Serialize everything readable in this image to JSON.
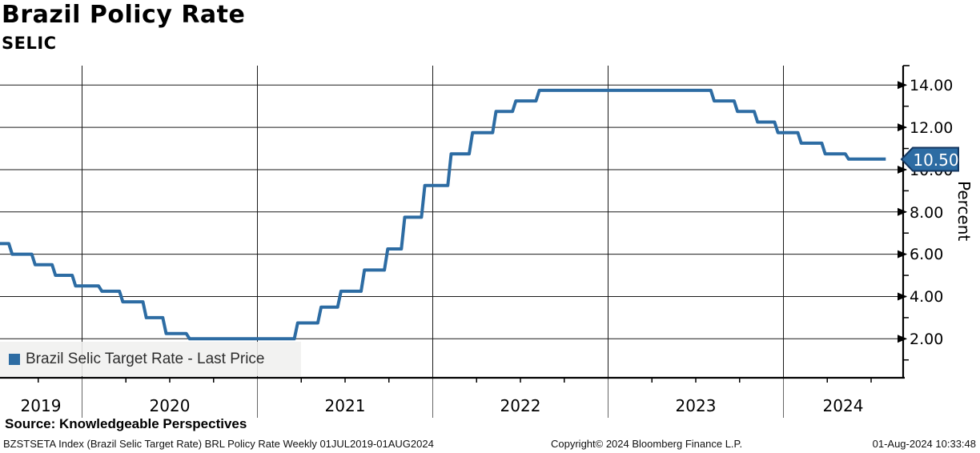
{
  "header": {
    "title": "Brazil Policy Rate",
    "subtitle": "SELIC"
  },
  "y_axis": {
    "unit_label": "Percent",
    "ticks": [
      "14.00",
      "12.00",
      "10.00",
      "8.00",
      "6.00",
      "4.00",
      "2.00"
    ]
  },
  "x_axis": {
    "years": [
      "2019",
      "2020",
      "2021",
      "2022",
      "2023",
      "2024"
    ]
  },
  "legend": {
    "label": "Brazil Selic Target Rate - Last Price"
  },
  "badge": {
    "value": "10.50"
  },
  "colors": {
    "line": "#2d6ca3",
    "badge_fill": "#2d6ca3",
    "badge_border": "#14365f",
    "grid": "#1a1a1a",
    "axis": "#000000",
    "separator": "#666666",
    "legend_bg": "#f0f0ef"
  },
  "footer": {
    "source": "Source: Knowledgeable Perspectives",
    "meta_left": "BZSTSETA Index (Brazil Selic Target Rate) BRL Policy Rate  Weekly 01JUL2019-01AUG2024",
    "meta_center": "Copyright© 2024 Bloomberg Finance L.P.",
    "meta_right": "01-Aug-2024 10:33:48"
  },
  "chart_data": {
    "type": "line",
    "style": "step",
    "title": "Brazil Policy Rate",
    "subtitle": "SELIC",
    "ylabel": "Percent",
    "ylim": [
      1,
      15
    ],
    "y_major_ticks": [
      2,
      4,
      6,
      8,
      10,
      12,
      14
    ],
    "x_range": [
      "01JUL2019",
      "01AUG2024"
    ],
    "frequency": "Weekly",
    "grid": "on",
    "legend_position": "bottom-left",
    "last_price": 10.5,
    "series": [
      {
        "name": "Brazil Selic Target Rate - Last Price",
        "color": "#2d6ca3",
        "step_changes": [
          [
            "2019-07-01",
            6.5
          ],
          [
            "2019-07-31",
            6.0
          ],
          [
            "2019-09-18",
            5.5
          ],
          [
            "2019-10-30",
            5.0
          ],
          [
            "2019-12-11",
            4.5
          ],
          [
            "2020-02-05",
            4.25
          ],
          [
            "2020-03-18",
            3.75
          ],
          [
            "2020-05-06",
            3.0
          ],
          [
            "2020-06-17",
            2.25
          ],
          [
            "2020-08-05",
            2.0
          ],
          [
            "2021-03-17",
            2.75
          ],
          [
            "2021-05-05",
            3.5
          ],
          [
            "2021-06-16",
            4.25
          ],
          [
            "2021-08-04",
            5.25
          ],
          [
            "2021-09-22",
            6.25
          ],
          [
            "2021-10-27",
            7.75
          ],
          [
            "2021-12-08",
            9.25
          ],
          [
            "2022-02-02",
            10.75
          ],
          [
            "2022-03-16",
            11.75
          ],
          [
            "2022-05-04",
            12.75
          ],
          [
            "2022-06-15",
            13.25
          ],
          [
            "2022-08-03",
            13.75
          ],
          [
            "2023-08-02",
            13.25
          ],
          [
            "2023-09-20",
            12.75
          ],
          [
            "2023-11-01",
            12.25
          ],
          [
            "2023-12-13",
            11.75
          ],
          [
            "2024-01-31",
            11.25
          ],
          [
            "2024-03-20",
            10.75
          ],
          [
            "2024-05-08",
            10.5
          ],
          [
            "2024-08-01",
            10.5
          ]
        ]
      }
    ]
  }
}
